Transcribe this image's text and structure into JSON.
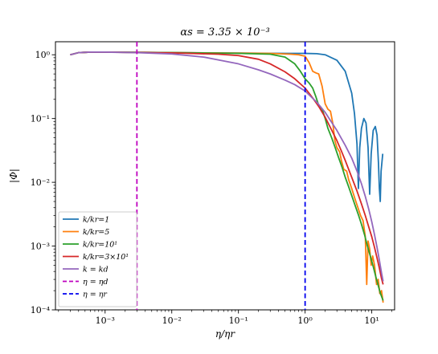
{
  "chart_data": {
    "type": "line",
    "title": "αs = 3.35 × 10⁻³",
    "xlabel": "η/ηr",
    "ylabel": "|Φ|",
    "xscale": "log",
    "yscale": "log",
    "xlim": [
      0.00018,
      22
    ],
    "ylim": [
      0.0001,
      1.6
    ],
    "x_ticks": [
      {
        "value": 0.001,
        "label": "10⁻³"
      },
      {
        "value": 0.01,
        "label": "10⁻²"
      },
      {
        "value": 0.1,
        "label": "10⁻¹"
      },
      {
        "value": 1,
        "label": "10⁰"
      },
      {
        "value": 10,
        "label": "10¹"
      }
    ],
    "y_ticks": [
      {
        "value": 0.0001,
        "label": "10⁻⁴"
      },
      {
        "value": 0.001,
        "label": "10⁻³"
      },
      {
        "value": 0.01,
        "label": "10⁻²"
      },
      {
        "value": 0.1,
        "label": "10⁻¹"
      },
      {
        "value": 1,
        "label": "10⁰"
      }
    ],
    "grid": false,
    "legend_position": "lower-left",
    "series": [
      {
        "name": "k/kr=1",
        "color": "#1f77b4",
        "style": "solid",
        "points": [
          [
            0.0003,
            1.0
          ],
          [
            0.0004,
            1.08
          ],
          [
            0.0006,
            1.1
          ],
          [
            0.001,
            1.1
          ],
          [
            0.01,
            1.08
          ],
          [
            0.1,
            1.06
          ],
          [
            0.5,
            1.05
          ],
          [
            1.0,
            1.05
          ],
          [
            1.5,
            1.04
          ],
          [
            2.0,
            1.0
          ],
          [
            3.0,
            0.82
          ],
          [
            4.0,
            0.55
          ],
          [
            5.0,
            0.25
          ],
          [
            5.5,
            0.12
          ],
          [
            6.0,
            0.04
          ],
          [
            6.3,
            0.008
          ],
          [
            6.6,
            0.035
          ],
          [
            7.0,
            0.07
          ],
          [
            7.6,
            0.1
          ],
          [
            8.2,
            0.085
          ],
          [
            8.8,
            0.035
          ],
          [
            9.3,
            0.0065
          ],
          [
            9.8,
            0.028
          ],
          [
            10.5,
            0.065
          ],
          [
            11.3,
            0.075
          ],
          [
            12.0,
            0.055
          ],
          [
            12.6,
            0.02
          ],
          [
            13.0,
            0.008
          ],
          [
            13.4,
            0.005
          ],
          [
            13.8,
            0.015
          ],
          [
            14.6,
            0.028
          ]
        ]
      },
      {
        "name": "k/kr=5",
        "color": "#ff7f0e",
        "style": "solid",
        "points": [
          [
            0.0003,
            1.0
          ],
          [
            0.0004,
            1.08
          ],
          [
            0.0006,
            1.1
          ],
          [
            0.001,
            1.1
          ],
          [
            0.01,
            1.08
          ],
          [
            0.1,
            1.06
          ],
          [
            0.3,
            1.05
          ],
          [
            0.6,
            1.02
          ],
          [
            0.8,
            1.0
          ],
          [
            1.0,
            0.95
          ],
          [
            1.15,
            0.75
          ],
          [
            1.3,
            0.55
          ],
          [
            1.45,
            0.52
          ],
          [
            1.6,
            0.5
          ],
          [
            1.8,
            0.32
          ],
          [
            2.0,
            0.17
          ],
          [
            2.2,
            0.14
          ],
          [
            2.4,
            0.13
          ],
          [
            2.6,
            0.085
          ],
          [
            2.8,
            0.045
          ],
          [
            3.0,
            0.035
          ],
          [
            3.3,
            0.03
          ],
          [
            3.5,
            0.022
          ],
          [
            3.8,
            0.016
          ],
          [
            4.2,
            0.015
          ],
          [
            4.5,
            0.011
          ],
          [
            5.0,
            0.008
          ],
          [
            5.6,
            0.0055
          ],
          [
            6.2,
            0.004
          ],
          [
            6.8,
            0.003
          ],
          [
            7.4,
            0.0025
          ],
          [
            8.0,
            0.0014
          ],
          [
            8.4,
            0.00025
          ],
          [
            8.8,
            0.0012
          ],
          [
            9.3,
            0.0009
          ],
          [
            9.8,
            0.0005
          ],
          [
            10.3,
            0.0007
          ],
          [
            11.0,
            0.0005
          ],
          [
            11.8,
            0.00025
          ],
          [
            12.5,
            0.0003
          ],
          [
            13.2,
            0.00018
          ],
          [
            14.0,
            0.0002
          ],
          [
            14.8,
            0.00013
          ]
        ]
      },
      {
        "name": "k/kr=10¹",
        "color": "#2ca02c",
        "style": "solid",
        "points": [
          [
            0.0003,
            1.0
          ],
          [
            0.0004,
            1.08
          ],
          [
            0.0006,
            1.1
          ],
          [
            0.001,
            1.1
          ],
          [
            0.01,
            1.08
          ],
          [
            0.1,
            1.05
          ],
          [
            0.3,
            1.02
          ],
          [
            0.5,
            0.92
          ],
          [
            0.7,
            0.72
          ],
          [
            0.85,
            0.55
          ],
          [
            1.0,
            0.42
          ],
          [
            1.15,
            0.36
          ],
          [
            1.3,
            0.3
          ],
          [
            1.45,
            0.22
          ],
          [
            1.6,
            0.16
          ],
          [
            1.8,
            0.14
          ],
          [
            2.0,
            0.1
          ],
          [
            2.2,
            0.07
          ],
          [
            2.5,
            0.05
          ],
          [
            2.8,
            0.036
          ],
          [
            3.2,
            0.024
          ],
          [
            3.6,
            0.017
          ],
          [
            4.0,
            0.012
          ],
          [
            4.5,
            0.0085
          ],
          [
            5.0,
            0.0062
          ],
          [
            5.6,
            0.0044
          ],
          [
            6.3,
            0.0031
          ],
          [
            7.0,
            0.0022
          ],
          [
            7.8,
            0.0015
          ],
          [
            8.6,
            0.001
          ],
          [
            9.5,
            0.0007
          ],
          [
            10.5,
            0.00048
          ],
          [
            11.5,
            0.00033
          ],
          [
            12.5,
            0.00024
          ],
          [
            13.5,
            0.00018
          ],
          [
            14.8,
            0.00014
          ]
        ]
      },
      {
        "name": "k/kr=3×10¹",
        "color": "#d62728",
        "style": "solid",
        "points": [
          [
            0.0003,
            1.0
          ],
          [
            0.0004,
            1.08
          ],
          [
            0.0006,
            1.1
          ],
          [
            0.001,
            1.1
          ],
          [
            0.01,
            1.07
          ],
          [
            0.05,
            1.02
          ],
          [
            0.1,
            0.97
          ],
          [
            0.2,
            0.85
          ],
          [
            0.3,
            0.72
          ],
          [
            0.5,
            0.54
          ],
          [
            0.7,
            0.42
          ],
          [
            1.0,
            0.3
          ],
          [
            1.3,
            0.21
          ],
          [
            1.6,
            0.155
          ],
          [
            2.0,
            0.105
          ],
          [
            2.5,
            0.066
          ],
          [
            3.0,
            0.045
          ],
          [
            3.5,
            0.031
          ],
          [
            4.0,
            0.022
          ],
          [
            5.0,
            0.012
          ],
          [
            6.0,
            0.0073
          ],
          [
            7.0,
            0.0046
          ],
          [
            8.0,
            0.003
          ],
          [
            9.0,
            0.002
          ],
          [
            10.0,
            0.0014
          ],
          [
            11.0,
            0.00095
          ],
          [
            12.0,
            0.00065
          ],
          [
            13.0,
            0.00045
          ],
          [
            14.0,
            0.00031
          ],
          [
            14.8,
            0.00025
          ]
        ]
      },
      {
        "name": "k = kd",
        "color": "#9467bd",
        "style": "solid",
        "points": [
          [
            0.0003,
            1.0
          ],
          [
            0.0004,
            1.08
          ],
          [
            0.0006,
            1.1
          ],
          [
            0.001,
            1.1
          ],
          [
            0.003,
            1.08
          ],
          [
            0.01,
            1.03
          ],
          [
            0.03,
            0.92
          ],
          [
            0.1,
            0.72
          ],
          [
            0.2,
            0.58
          ],
          [
            0.3,
            0.5
          ],
          [
            0.5,
            0.4
          ],
          [
            0.7,
            0.34
          ],
          [
            1.0,
            0.27
          ],
          [
            1.5,
            0.18
          ],
          [
            2.0,
            0.125
          ],
          [
            3.0,
            0.065
          ],
          [
            4.0,
            0.038
          ],
          [
            5.0,
            0.024
          ],
          [
            6.0,
            0.015
          ],
          [
            7.0,
            0.0095
          ],
          [
            8.0,
            0.006
          ],
          [
            9.0,
            0.0038
          ],
          [
            10.0,
            0.0024
          ],
          [
            11.0,
            0.0015
          ],
          [
            12.0,
            0.00095
          ],
          [
            13.0,
            0.0006
          ],
          [
            14.0,
            0.00038
          ],
          [
            14.8,
            0.00028
          ]
        ]
      }
    ],
    "reference_lines": [
      {
        "name": "η = ηd",
        "x": 0.003,
        "color": "#bf00bf",
        "style": "dashed"
      },
      {
        "name": "η = ηr",
        "x": 1.0,
        "color": "#0000ee",
        "style": "dashed"
      }
    ]
  }
}
